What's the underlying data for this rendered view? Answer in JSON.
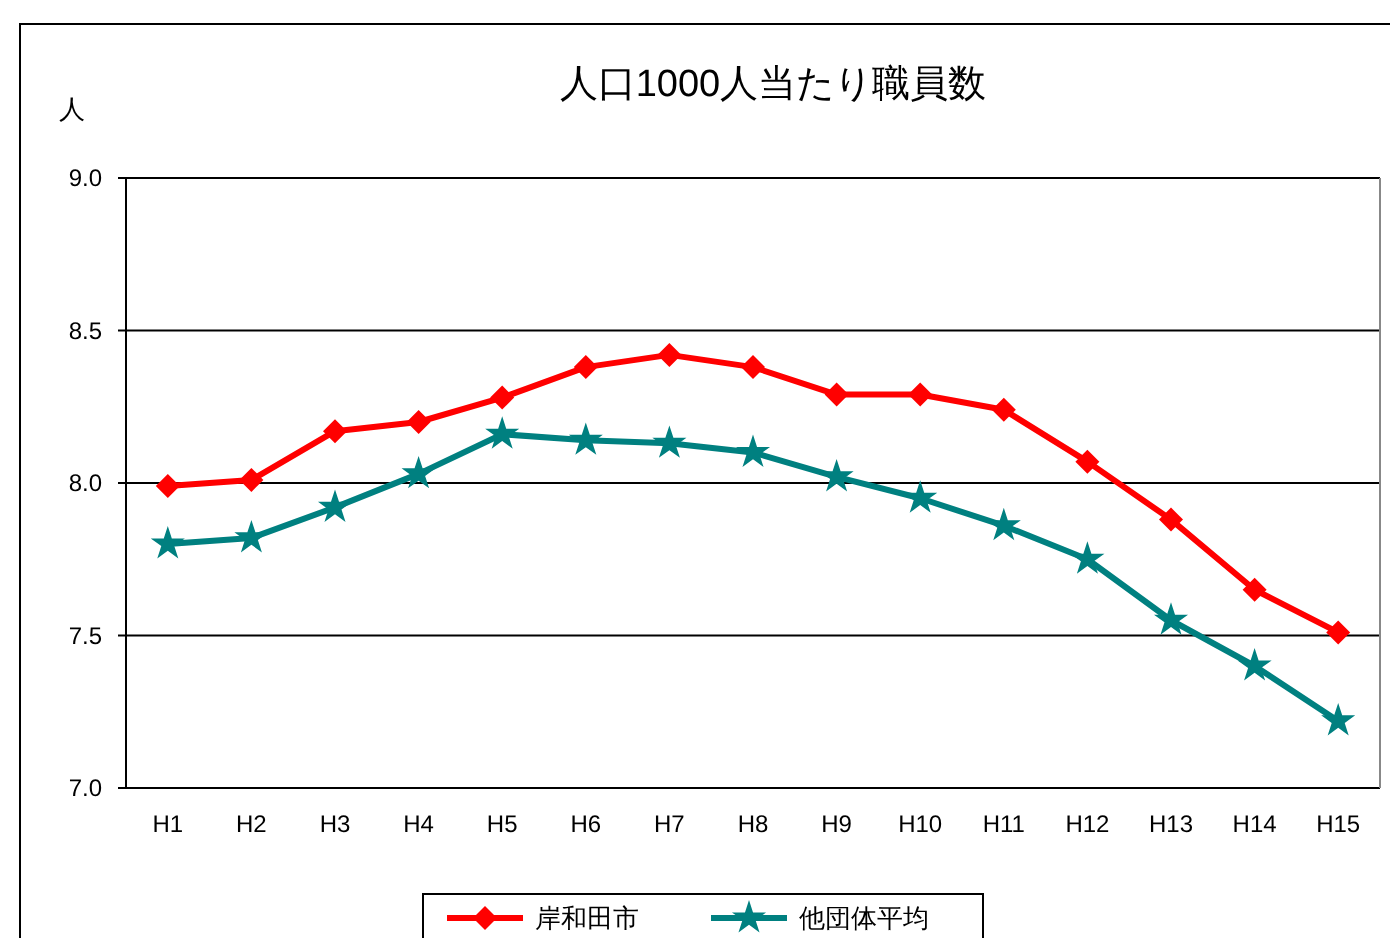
{
  "chart_data": {
    "type": "line",
    "title": "人口1000人当たり職員数",
    "ylabel": "人",
    "categories": [
      "H1",
      "H2",
      "H3",
      "H4",
      "H5",
      "H6",
      "H7",
      "H8",
      "H9",
      "H10",
      "H11",
      "H12",
      "H13",
      "H14",
      "H15"
    ],
    "series": [
      {
        "name": "岸和田市",
        "color": "#ff0000",
        "marker": "diamond",
        "values": [
          7.99,
          8.01,
          8.17,
          8.2,
          8.28,
          8.38,
          8.42,
          8.38,
          8.29,
          8.29,
          8.24,
          8.07,
          7.88,
          7.65,
          7.51
        ]
      },
      {
        "name": "他団体平均",
        "color": "#008080",
        "marker": "star",
        "values": [
          7.8,
          7.82,
          7.92,
          8.03,
          8.16,
          8.14,
          8.13,
          8.1,
          8.02,
          7.95,
          7.86,
          7.75,
          7.55,
          7.4,
          7.22
        ]
      }
    ],
    "ylim": [
      7,
      9
    ],
    "yticks": [
      {
        "value": 7,
        "label": "7.0"
      },
      {
        "value": 7.5,
        "label": "7.5"
      },
      {
        "value": 8,
        "label": "8.0"
      },
      {
        "value": 8.5,
        "label": "8.5"
      },
      {
        "value": 9,
        "label": "9.0"
      }
    ],
    "grid": "y",
    "legend": "bottom"
  }
}
